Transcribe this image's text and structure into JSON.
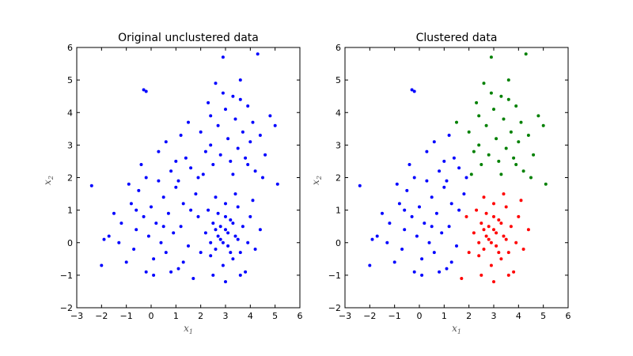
{
  "chart_data": [
    {
      "type": "scatter",
      "title": "Original unclustered data",
      "xlabel": "x",
      "xlabel_sub": "1",
      "ylabel": "x",
      "ylabel_sub": "2",
      "xlim": [
        -3,
        6
      ],
      "ylim": [
        -2,
        6
      ],
      "xticks": [
        -3,
        -2,
        -1,
        0,
        1,
        2,
        3,
        4,
        5,
        6
      ],
      "yticks": [
        -2,
        -1,
        0,
        1,
        2,
        3,
        4,
        5,
        6
      ],
      "grid": false,
      "series": [
        {
          "color": "#0000ff",
          "points": [
            [
              -0.3,
              4.7
            ],
            [
              -0.2,
              4.65
            ],
            [
              -2.4,
              1.75
            ],
            [
              -2.0,
              -0.7
            ],
            [
              -1.9,
              0.1
            ],
            [
              -1.7,
              0.2
            ],
            [
              -1.5,
              0.9
            ],
            [
              -1.2,
              0.6
            ],
            [
              -1.0,
              -0.6
            ],
            [
              -0.8,
              1.2
            ],
            [
              -0.7,
              -0.2
            ],
            [
              -0.6,
              0.4
            ],
            [
              -0.5,
              1.6
            ],
            [
              -0.3,
              0.8
            ],
            [
              -0.2,
              -0.9
            ],
            [
              -0.1,
              0.2
            ],
            [
              0.0,
              1.1
            ],
            [
              0.1,
              -0.5
            ],
            [
              0.2,
              0.6
            ],
            [
              0.3,
              1.9
            ],
            [
              0.4,
              0.0
            ],
            [
              0.5,
              1.4
            ],
            [
              0.6,
              -0.3
            ],
            [
              0.7,
              0.9
            ],
            [
              0.8,
              2.2
            ],
            [
              0.9,
              0.3
            ],
            [
              1.0,
              1.7
            ],
            [
              1.1,
              -0.8
            ],
            [
              1.2,
              0.5
            ],
            [
              1.3,
              1.2
            ],
            [
              1.4,
              2.6
            ],
            [
              1.5,
              -0.1
            ],
            [
              1.6,
              1.0
            ],
            [
              1.7,
              -1.1
            ],
            [
              1.8,
              1.5
            ],
            [
              -0.9,
              1.8
            ],
            [
              -0.4,
              2.4
            ],
            [
              0.3,
              2.8
            ],
            [
              0.6,
              3.1
            ],
            [
              1.0,
              2.5
            ],
            [
              1.2,
              3.3
            ],
            [
              1.5,
              3.7
            ],
            [
              -0.2,
              2.0
            ],
            [
              0.1,
              -1.0
            ],
            [
              0.8,
              -0.9
            ],
            [
              1.3,
              -0.6
            ],
            [
              -1.3,
              0.0
            ],
            [
              -0.6,
              1.0
            ],
            [
              0.5,
              0.5
            ],
            [
              1.1,
              1.9
            ],
            [
              1.6,
              2.3
            ],
            [
              1.9,
              2.0
            ],
            [
              2.0,
              3.4
            ],
            [
              2.2,
              2.8
            ],
            [
              2.3,
              4.3
            ],
            [
              2.4,
              3.0
            ],
            [
              2.5,
              2.4
            ],
            [
              2.6,
              4.9
            ],
            [
              2.7,
              3.6
            ],
            [
              2.8,
              2.7
            ],
            [
              2.9,
              5.7
            ],
            [
              3.0,
              4.1
            ],
            [
              3.1,
              3.2
            ],
            [
              3.2,
              2.5
            ],
            [
              3.3,
              4.5
            ],
            [
              3.4,
              3.8
            ],
            [
              3.5,
              2.9
            ],
            [
              3.6,
              5.0
            ],
            [
              3.7,
              3.4
            ],
            [
              3.8,
              2.6
            ],
            [
              3.9,
              4.2
            ],
            [
              4.0,
              3.1
            ],
            [
              4.1,
              3.7
            ],
            [
              4.2,
              2.2
            ],
            [
              4.3,
              5.8
            ],
            [
              4.4,
              3.3
            ],
            [
              4.6,
              2.7
            ],
            [
              4.8,
              3.9
            ],
            [
              5.0,
              3.6
            ],
            [
              5.1,
              1.8
            ],
            [
              2.1,
              2.1
            ],
            [
              2.4,
              3.9
            ],
            [
              2.9,
              4.6
            ],
            [
              3.3,
              2.1
            ],
            [
              3.6,
              4.4
            ],
            [
              3.9,
              2.4
            ],
            [
              4.5,
              2.0
            ],
            [
              2.2,
              0.3
            ],
            [
              2.4,
              -0.4
            ],
            [
              2.5,
              0.6
            ],
            [
              2.6,
              -0.2
            ],
            [
              2.7,
              0.9
            ],
            [
              2.8,
              0.1
            ],
            [
              2.9,
              -0.7
            ],
            [
              3.0,
              0.4
            ],
            [
              3.1,
              -0.1
            ],
            [
              3.2,
              0.7
            ],
            [
              3.3,
              -0.5
            ],
            [
              3.4,
              0.2
            ],
            [
              3.5,
              1.1
            ],
            [
              3.6,
              -0.3
            ],
            [
              3.7,
              0.5
            ],
            [
              3.8,
              -0.9
            ],
            [
              3.9,
              0.0
            ],
            [
              4.0,
              0.8
            ],
            [
              4.2,
              -0.2
            ],
            [
              4.4,
              0.4
            ],
            [
              2.3,
              1.0
            ],
            [
              2.6,
              1.4
            ],
            [
              3.0,
              1.2
            ],
            [
              3.4,
              1.5
            ],
            [
              3.0,
              -1.2
            ],
            [
              2.5,
              -1.0
            ],
            [
              3.6,
              -1.0
            ],
            [
              2.0,
              -0.3
            ],
            [
              1.9,
              0.8
            ],
            [
              4.1,
              1.3
            ],
            [
              2.8,
              0.5
            ],
            [
              3.1,
              0.3
            ],
            [
              2.9,
              0.0
            ],
            [
              3.2,
              -0.3
            ],
            [
              2.7,
              0.2
            ],
            [
              3.3,
              0.6
            ],
            [
              3.0,
              0.8
            ],
            [
              2.6,
              0.4
            ],
            [
              3.5,
              0.1
            ],
            [
              2.4,
              0.0
            ]
          ]
        }
      ]
    },
    {
      "type": "scatter",
      "title": "Clustered data",
      "xlabel": "x",
      "xlabel_sub": "1",
      "ylabel": "x",
      "ylabel_sub": "2",
      "xlim": [
        -3,
        6
      ],
      "ylim": [
        -2,
        6
      ],
      "xticks": [
        -3,
        -2,
        -1,
        0,
        1,
        2,
        3,
        4,
        5,
        6
      ],
      "yticks": [
        -2,
        -1,
        0,
        1,
        2,
        3,
        4,
        5,
        6
      ],
      "grid": false,
      "series": [
        {
          "color": "#0000ff",
          "points": [
            [
              -0.3,
              4.7
            ],
            [
              -0.2,
              4.65
            ],
            [
              -2.4,
              1.75
            ],
            [
              -2.0,
              -0.7
            ],
            [
              -1.9,
              0.1
            ],
            [
              -1.7,
              0.2
            ],
            [
              -1.5,
              0.9
            ],
            [
              -1.2,
              0.6
            ],
            [
              -1.0,
              -0.6
            ],
            [
              -0.8,
              1.2
            ],
            [
              -0.7,
              -0.2
            ],
            [
              -0.6,
              0.4
            ],
            [
              -0.5,
              1.6
            ],
            [
              -0.3,
              0.8
            ],
            [
              -0.2,
              -0.9
            ],
            [
              -0.1,
              0.2
            ],
            [
              0.0,
              1.1
            ],
            [
              0.1,
              -0.5
            ],
            [
              0.2,
              0.6
            ],
            [
              0.3,
              1.9
            ],
            [
              0.4,
              0.0
            ],
            [
              0.5,
              1.4
            ],
            [
              0.6,
              -0.3
            ],
            [
              0.7,
              0.9
            ],
            [
              0.8,
              2.2
            ],
            [
              0.9,
              0.3
            ],
            [
              1.0,
              1.7
            ],
            [
              1.1,
              -0.8
            ],
            [
              1.2,
              0.5
            ],
            [
              1.3,
              1.2
            ],
            [
              1.4,
              2.6
            ],
            [
              1.5,
              -0.1
            ],
            [
              1.6,
              1.0
            ],
            [
              1.8,
              1.5
            ],
            [
              -0.9,
              1.8
            ],
            [
              -0.4,
              2.4
            ],
            [
              0.3,
              2.8
            ],
            [
              0.6,
              3.1
            ],
            [
              1.0,
              2.5
            ],
            [
              1.2,
              3.3
            ],
            [
              -0.2,
              2.0
            ],
            [
              0.1,
              -1.0
            ],
            [
              0.8,
              -0.9
            ],
            [
              1.3,
              -0.6
            ],
            [
              -1.3,
              0.0
            ],
            [
              -0.6,
              1.0
            ],
            [
              0.5,
              0.5
            ],
            [
              1.1,
              1.9
            ],
            [
              1.6,
              2.3
            ],
            [
              1.9,
              2.0
            ]
          ]
        },
        {
          "color": "#008000",
          "points": [
            [
              1.5,
              3.7
            ],
            [
              2.0,
              3.4
            ],
            [
              2.2,
              2.8
            ],
            [
              2.3,
              4.3
            ],
            [
              2.4,
              3.0
            ],
            [
              2.5,
              2.4
            ],
            [
              2.6,
              4.9
            ],
            [
              2.7,
              3.6
            ],
            [
              2.8,
              2.7
            ],
            [
              2.9,
              5.7
            ],
            [
              3.0,
              4.1
            ],
            [
              3.1,
              3.2
            ],
            [
              3.2,
              2.5
            ],
            [
              3.3,
              4.5
            ],
            [
              3.4,
              3.8
            ],
            [
              3.5,
              2.9
            ],
            [
              3.6,
              5.0
            ],
            [
              3.7,
              3.4
            ],
            [
              3.8,
              2.6
            ],
            [
              3.9,
              4.2
            ],
            [
              4.0,
              3.1
            ],
            [
              4.1,
              3.7
            ],
            [
              4.2,
              2.2
            ],
            [
              4.3,
              5.8
            ],
            [
              4.4,
              3.3
            ],
            [
              4.6,
              2.7
            ],
            [
              4.8,
              3.9
            ],
            [
              5.0,
              3.6
            ],
            [
              5.1,
              1.8
            ],
            [
              2.1,
              2.1
            ],
            [
              2.4,
              3.9
            ],
            [
              2.9,
              4.6
            ],
            [
              3.3,
              2.1
            ],
            [
              3.6,
              4.4
            ],
            [
              3.9,
              2.4
            ],
            [
              4.5,
              2.0
            ]
          ]
        },
        {
          "color": "#ff0000",
          "points": [
            [
              1.7,
              -1.1
            ],
            [
              2.2,
              0.3
            ],
            [
              2.4,
              -0.4
            ],
            [
              2.5,
              0.6
            ],
            [
              2.6,
              -0.2
            ],
            [
              2.7,
              0.9
            ],
            [
              2.8,
              0.1
            ],
            [
              2.9,
              -0.7
            ],
            [
              3.0,
              0.4
            ],
            [
              3.1,
              -0.1
            ],
            [
              3.2,
              0.7
            ],
            [
              3.3,
              -0.5
            ],
            [
              3.4,
              0.2
            ],
            [
              3.5,
              1.1
            ],
            [
              3.6,
              -0.3
            ],
            [
              3.7,
              0.5
            ],
            [
              3.8,
              -0.9
            ],
            [
              3.9,
              0.0
            ],
            [
              4.0,
              0.8
            ],
            [
              4.2,
              -0.2
            ],
            [
              4.4,
              0.4
            ],
            [
              2.3,
              1.0
            ],
            [
              2.6,
              1.4
            ],
            [
              3.0,
              1.2
            ],
            [
              3.4,
              1.5
            ],
            [
              3.0,
              -1.2
            ],
            [
              2.5,
              -1.0
            ],
            [
              3.6,
              -1.0
            ],
            [
              2.0,
              -0.3
            ],
            [
              1.9,
              0.8
            ],
            [
              4.1,
              1.3
            ],
            [
              2.8,
              0.5
            ],
            [
              3.1,
              0.3
            ],
            [
              2.9,
              0.0
            ],
            [
              3.2,
              -0.3
            ],
            [
              2.7,
              0.2
            ],
            [
              3.3,
              0.6
            ],
            [
              3.0,
              0.8
            ],
            [
              2.6,
              0.4
            ],
            [
              3.5,
              0.1
            ],
            [
              2.4,
              0.0
            ]
          ]
        }
      ]
    }
  ]
}
